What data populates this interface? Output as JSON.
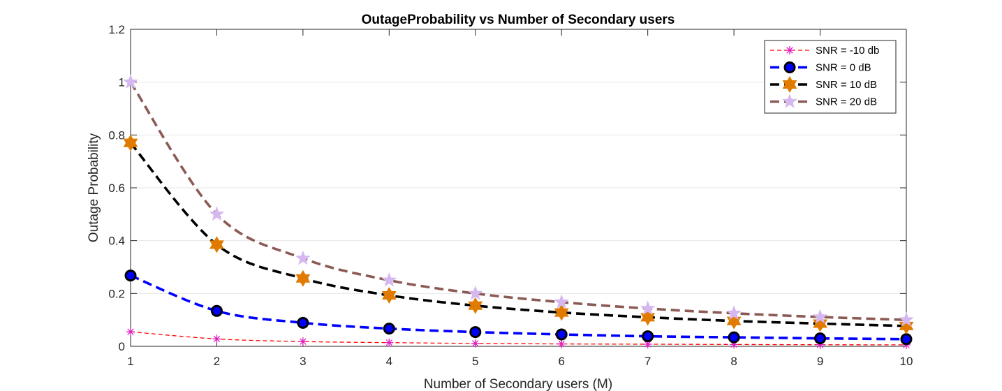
{
  "chart_data": {
    "type": "line",
    "title": "OutageProbability vs Number of Secondary users",
    "xlabel": "Number of Secondary users (M)",
    "ylabel": "Outage Probability",
    "xlim": [
      1,
      10
    ],
    "ylim": [
      0,
      1.2
    ],
    "x": [
      1,
      2,
      3,
      4,
      5,
      6,
      7,
      8,
      9,
      10
    ],
    "xticks": [
      "1",
      "2",
      "3",
      "4",
      "5",
      "6",
      "7",
      "8",
      "9",
      "10"
    ],
    "yticks": [
      "0",
      "0.2",
      "0.4",
      "0.6",
      "0.8",
      "1",
      "1.2"
    ],
    "ytick_values": [
      0,
      0.2,
      0.4,
      0.6,
      0.8,
      1.0,
      1.2
    ],
    "grid": "horizontal",
    "legend_position": "top-right",
    "series": [
      {
        "name": "SNR = -10 db",
        "values": [
          0.055,
          0.028,
          0.018,
          0.014,
          0.011,
          0.009,
          0.008,
          0.007,
          0.006,
          0.0055
        ],
        "line_color": "#ff0000",
        "line_style": "dashed-thin",
        "marker": "asterisk",
        "marker_color": "#e020c0"
      },
      {
        "name": "SNR = 0 dB",
        "values": [
          0.268,
          0.134,
          0.089,
          0.067,
          0.054,
          0.045,
          0.038,
          0.034,
          0.03,
          0.027
        ],
        "line_color": "#0000ff",
        "line_style": "dashed-thick",
        "marker": "circle",
        "marker_color": "#0000ff"
      },
      {
        "name": "SNR = 10 dB",
        "values": [
          0.77,
          0.385,
          0.257,
          0.193,
          0.154,
          0.128,
          0.11,
          0.096,
          0.086,
          0.077
        ],
        "line_color": "#000000",
        "line_style": "dashed-thick",
        "marker": "hexagram",
        "marker_color": "#e07b00"
      },
      {
        "name": "SNR = 20 dB",
        "values": [
          1.0,
          0.5,
          0.333,
          0.25,
          0.2,
          0.167,
          0.143,
          0.125,
          0.111,
          0.1
        ],
        "line_color": "#8c5a55",
        "line_style": "dashed-thick",
        "marker": "pentagram",
        "marker_color": "#d6b8f0"
      }
    ]
  }
}
